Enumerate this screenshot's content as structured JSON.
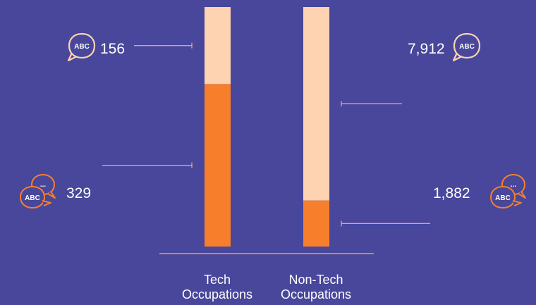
{
  "colors": {
    "background": "#48479b",
    "single_language": "#f77f2b",
    "multi_language_bg": "#fdd3b2",
    "axis": "#f77f2b",
    "leader": "#f4a16c",
    "white": "#ffffff"
  },
  "icons": {
    "single": "abc-speech-bubble-icon",
    "multi": "abc-multiple-speech-bubbles-icon"
  },
  "chart_data": {
    "type": "bar",
    "stacked": true,
    "normalized": true,
    "categories": [
      "Tech Occupations",
      "Non-Tech Occupations"
    ],
    "category_lines": [
      [
        "Tech",
        "Occupations"
      ],
      [
        "Non-Tech",
        "Occupations"
      ]
    ],
    "series": [
      {
        "values": [
          329,
          1882
        ],
        "color": "#f77f2b",
        "icon": "abc-multiple-speech-bubbles-icon"
      },
      {
        "values": [
          156,
          7912
        ],
        "color": "#fdd3b2",
        "icon": "abc-speech-bubble-icon"
      }
    ],
    "value_labels": {
      "tech_top": "156",
      "tech_bottom": "329",
      "nontech_top": "7,912",
      "nontech_bottom": "1,882"
    },
    "ylim": [
      0,
      1
    ]
  }
}
